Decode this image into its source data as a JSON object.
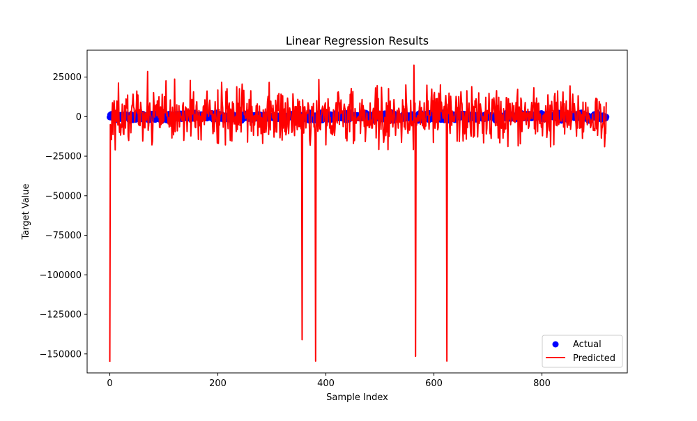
{
  "chart_data": {
    "type": "line",
    "title": "Linear Regression Results",
    "xlabel": "Sample Index",
    "ylabel": "Target Value",
    "xlim": [
      -42,
      958
    ],
    "ylim": [
      -162000,
      42000
    ],
    "xticks": [
      0,
      200,
      400,
      600,
      800
    ],
    "xtick_labels": [
      "0",
      "200",
      "400",
      "600",
      "800"
    ],
    "yticks": [
      25000,
      0,
      -25000,
      -50000,
      -75000,
      -100000,
      -125000,
      -150000
    ],
    "ytick_labels": [
      "25000",
      "0",
      "−25000",
      "−50000",
      "−75000",
      "−100000",
      "−125000",
      "−150000"
    ],
    "grid": false,
    "legend_position": "lower-right",
    "n_samples": 920,
    "series": [
      {
        "name": "Actual",
        "kind": "scatter",
        "color": "#0000ff",
        "approx_range": [
          -2500,
          2500
        ]
      },
      {
        "name": "Predicted",
        "kind": "line",
        "color": "#ff0000",
        "approx_range": [
          -22000,
          28000
        ],
        "outliers": [
          {
            "x": 0,
            "y": -155000
          },
          {
            "x": 356,
            "y": -141000
          },
          {
            "x": 381,
            "y": -154500
          },
          {
            "x": 566,
            "y": -151500
          },
          {
            "x": 624,
            "y": -154500
          }
        ],
        "peaks": [
          {
            "x": 70,
            "y": 28500
          },
          {
            "x": 563,
            "y": 32500
          }
        ]
      }
    ]
  }
}
